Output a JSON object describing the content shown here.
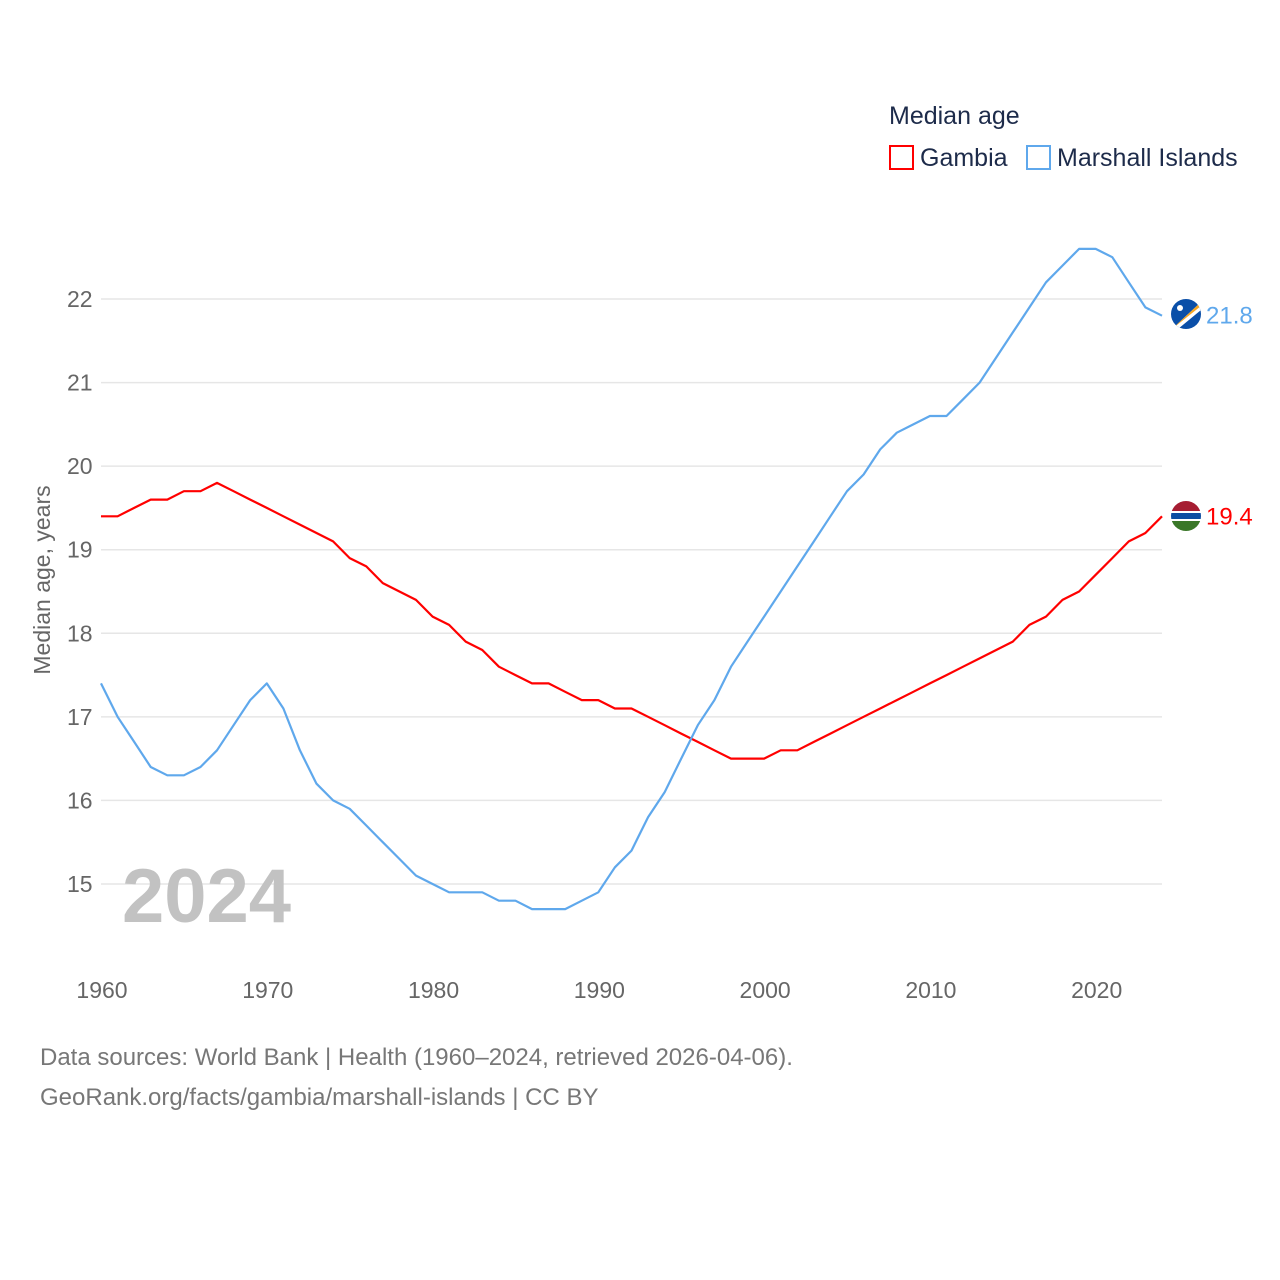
{
  "chart_data": {
    "type": "line",
    "title": "Median age",
    "xlabel": "",
    "ylabel": "Median age, years",
    "xlim": [
      1960,
      2024
    ],
    "ylim": [
      14.2,
      23
    ],
    "x_ticks": [
      1960,
      1970,
      1980,
      1990,
      2000,
      2010,
      2020
    ],
    "y_ticks": [
      15,
      16,
      17,
      18,
      19,
      20,
      21,
      22
    ],
    "grid": true,
    "legend_placement": "top-right",
    "year_label": "2024",
    "x": [
      1960,
      1961,
      1962,
      1963,
      1964,
      1965,
      1966,
      1967,
      1968,
      1969,
      1970,
      1971,
      1972,
      1973,
      1974,
      1975,
      1976,
      1977,
      1978,
      1979,
      1980,
      1981,
      1982,
      1983,
      1984,
      1985,
      1986,
      1987,
      1988,
      1989,
      1990,
      1991,
      1992,
      1993,
      1994,
      1995,
      1996,
      1997,
      1998,
      1999,
      2000,
      2001,
      2002,
      2003,
      2004,
      2005,
      2006,
      2007,
      2008,
      2009,
      2010,
      2011,
      2012,
      2013,
      2014,
      2015,
      2016,
      2017,
      2018,
      2019,
      2020,
      2021,
      2022,
      2023,
      2024
    ],
    "series": [
      {
        "name": "Gambia",
        "color": "#ff0000",
        "end_label": "19.4",
        "values": [
          19.4,
          19.4,
          19.5,
          19.6,
          19.6,
          19.7,
          19.7,
          19.8,
          19.7,
          19.6,
          19.5,
          19.4,
          19.3,
          19.2,
          19.1,
          18.9,
          18.8,
          18.6,
          18.5,
          18.4,
          18.2,
          18.1,
          17.9,
          17.8,
          17.6,
          17.5,
          17.4,
          17.4,
          17.3,
          17.2,
          17.2,
          17.1,
          17.1,
          17.0,
          16.9,
          16.8,
          16.7,
          16.6,
          16.5,
          16.5,
          16.5,
          16.6,
          16.6,
          16.7,
          16.8,
          16.9,
          17.0,
          17.1,
          17.2,
          17.3,
          17.4,
          17.5,
          17.6,
          17.7,
          17.8,
          17.9,
          18.1,
          18.2,
          18.4,
          18.5,
          18.7,
          18.9,
          19.1,
          19.2,
          19.4
        ]
      },
      {
        "name": "Marshall Islands",
        "color": "#5fa8ec",
        "end_label": "21.8",
        "values": [
          17.4,
          17.0,
          16.7,
          16.4,
          16.3,
          16.3,
          16.4,
          16.6,
          16.9,
          17.2,
          17.4,
          17.1,
          16.6,
          16.2,
          16.0,
          15.9,
          15.7,
          15.5,
          15.3,
          15.1,
          15.0,
          14.9,
          14.9,
          14.9,
          14.8,
          14.8,
          14.7,
          14.7,
          14.7,
          14.8,
          14.9,
          15.2,
          15.4,
          15.8,
          16.1,
          16.5,
          16.9,
          17.2,
          17.6,
          17.9,
          18.2,
          18.5,
          18.8,
          19.1,
          19.4,
          19.7,
          19.9,
          20.2,
          20.4,
          20.5,
          20.6,
          20.6,
          20.8,
          21.0,
          21.3,
          21.6,
          21.9,
          22.2,
          22.4,
          22.6,
          22.6,
          22.5,
          22.2,
          21.9,
          21.8
        ]
      }
    ]
  },
  "footer": {
    "line1": "Data sources: World Bank | Health (1960–2024, retrieved 2026-04-06).",
    "line2": "GeoRank.org/facts/gambia/marshall-islands | CC BY"
  }
}
